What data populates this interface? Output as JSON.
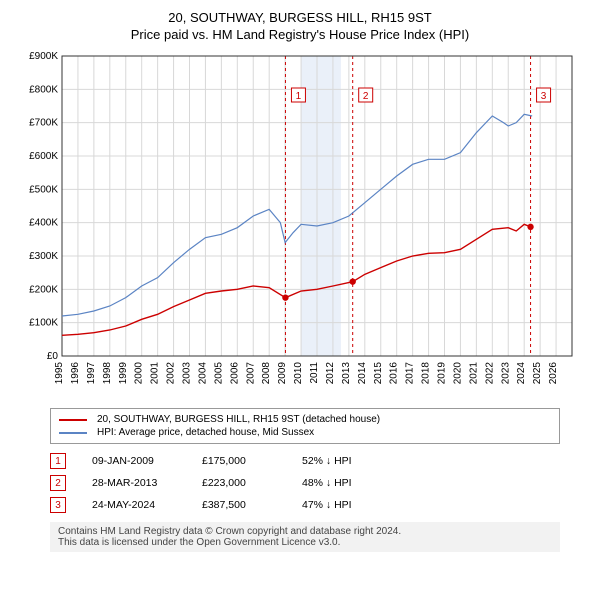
{
  "title": "20, SOUTHWAY, BURGESS HILL, RH15 9ST",
  "subtitle": "Price paid vs. HM Land Registry's House Price Index (HPI)",
  "chart": {
    "type": "line",
    "background_color": "#ffffff",
    "plot_border_color": "#333333",
    "grid_color": "#d8d8d8",
    "xlim": [
      1995,
      2027
    ],
    "ylim": [
      0,
      900000
    ],
    "yticks": [
      0,
      100000,
      200000,
      300000,
      400000,
      500000,
      600000,
      700000,
      800000,
      900000
    ],
    "ytick_labels": [
      "£0",
      "£100K",
      "£200K",
      "£300K",
      "£400K",
      "£500K",
      "£600K",
      "£700K",
      "£800K",
      "£900K"
    ],
    "xticks": [
      1995,
      1996,
      1997,
      1998,
      1999,
      2000,
      2001,
      2002,
      2003,
      2004,
      2005,
      2006,
      2007,
      2008,
      2009,
      2010,
      2011,
      2012,
      2013,
      2014,
      2015,
      2016,
      2017,
      2018,
      2019,
      2020,
      2021,
      2022,
      2023,
      2024,
      2025,
      2026
    ],
    "shaded_band": {
      "x_from": 2010,
      "x_to": 2012.5,
      "color": "#eaf0f9"
    },
    "vlines": [
      {
        "x": 2009.02,
        "color": "#cc0000",
        "dash": "3,3"
      },
      {
        "x": 2013.24,
        "color": "#cc0000",
        "dash": "3,3"
      },
      {
        "x": 2024.4,
        "color": "#cc0000",
        "dash": "3,3"
      }
    ],
    "markers": [
      {
        "n": "1",
        "x": 2009.02,
        "y": 780000,
        "color": "#cc0000"
      },
      {
        "n": "2",
        "x": 2013.24,
        "y": 780000,
        "color": "#cc0000"
      },
      {
        "n": "3",
        "x": 2024.4,
        "y": 780000,
        "color": "#cc0000"
      }
    ],
    "series": [
      {
        "name": "property",
        "label": "20, SOUTHWAY, BURGESS HILL, RH15 9ST (detached house)",
        "color": "#cc0000",
        "line_width": 1.4,
        "points": [
          [
            1995,
            62000
          ],
          [
            1996,
            65000
          ],
          [
            1997,
            70000
          ],
          [
            1998,
            78000
          ],
          [
            1999,
            90000
          ],
          [
            2000,
            110000
          ],
          [
            2001,
            125000
          ],
          [
            2002,
            148000
          ],
          [
            2003,
            168000
          ],
          [
            2004,
            188000
          ],
          [
            2005,
            195000
          ],
          [
            2006,
            200000
          ],
          [
            2007,
            210000
          ],
          [
            2008,
            205000
          ],
          [
            2009.02,
            175000
          ],
          [
            2010,
            195000
          ],
          [
            2011,
            200000
          ],
          [
            2012,
            210000
          ],
          [
            2013.24,
            223000
          ],
          [
            2014,
            245000
          ],
          [
            2015,
            265000
          ],
          [
            2016,
            285000
          ],
          [
            2017,
            300000
          ],
          [
            2018,
            308000
          ],
          [
            2019,
            310000
          ],
          [
            2020,
            320000
          ],
          [
            2021,
            350000
          ],
          [
            2022,
            380000
          ],
          [
            2023,
            385000
          ],
          [
            2023.5,
            375000
          ],
          [
            2024,
            395000
          ],
          [
            2024.4,
            387500
          ]
        ],
        "dots": [
          {
            "x": 2009.02,
            "y": 175000
          },
          {
            "x": 2013.24,
            "y": 223000
          },
          {
            "x": 2024.4,
            "y": 387500
          }
        ]
      },
      {
        "name": "hpi",
        "label": "HPI: Average price, detached house, Mid Sussex",
        "color": "#5b84c4",
        "line_width": 1.2,
        "points": [
          [
            1995,
            120000
          ],
          [
            1996,
            125000
          ],
          [
            1997,
            135000
          ],
          [
            1998,
            150000
          ],
          [
            1999,
            175000
          ],
          [
            2000,
            210000
          ],
          [
            2001,
            235000
          ],
          [
            2002,
            280000
          ],
          [
            2003,
            320000
          ],
          [
            2004,
            355000
          ],
          [
            2005,
            365000
          ],
          [
            2006,
            385000
          ],
          [
            2007,
            420000
          ],
          [
            2008,
            440000
          ],
          [
            2008.7,
            400000
          ],
          [
            2009,
            340000
          ],
          [
            2009.5,
            370000
          ],
          [
            2010,
            395000
          ],
          [
            2011,
            390000
          ],
          [
            2012,
            400000
          ],
          [
            2013,
            420000
          ],
          [
            2014,
            460000
          ],
          [
            2015,
            500000
          ],
          [
            2016,
            540000
          ],
          [
            2017,
            575000
          ],
          [
            2018,
            590000
          ],
          [
            2019,
            590000
          ],
          [
            2020,
            610000
          ],
          [
            2021,
            670000
          ],
          [
            2022,
            720000
          ],
          [
            2022.7,
            700000
          ],
          [
            2023,
            690000
          ],
          [
            2023.5,
            700000
          ],
          [
            2024,
            725000
          ],
          [
            2024.5,
            720000
          ]
        ]
      }
    ]
  },
  "legend": {
    "items": [
      {
        "color": "#cc0000",
        "label": "20, SOUTHWAY, BURGESS HILL, RH15 9ST (detached house)"
      },
      {
        "color": "#5b84c4",
        "label": "HPI: Average price, detached house, Mid Sussex"
      }
    ]
  },
  "events": [
    {
      "n": "1",
      "color": "#cc0000",
      "date": "09-JAN-2009",
      "price": "£175,000",
      "diff": "52% ↓ HPI"
    },
    {
      "n": "2",
      "color": "#cc0000",
      "date": "28-MAR-2013",
      "price": "£223,000",
      "diff": "48% ↓ HPI"
    },
    {
      "n": "3",
      "color": "#cc0000",
      "date": "24-MAY-2024",
      "price": "£387,500",
      "diff": "47% ↓ HPI"
    }
  ],
  "footer": {
    "line1": "Contains HM Land Registry data © Crown copyright and database right 2024.",
    "line2": "This data is licensed under the Open Government Licence v3.0."
  }
}
